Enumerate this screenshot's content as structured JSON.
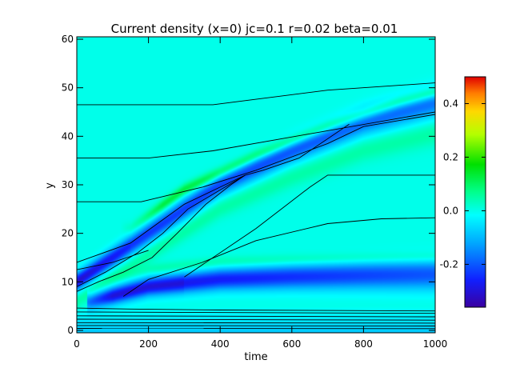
{
  "chart_data": {
    "type": "heatmap",
    "title": "Current density (x=0) jc=0.1 r=0.02 beta=0.01",
    "xlabel": "time",
    "ylabel": "y",
    "xlim": [
      0,
      1000
    ],
    "ylim": [
      -0.5,
      60.5
    ],
    "x_ticks": [
      "0",
      "200",
      "400",
      "600",
      "800",
      "1000"
    ],
    "y_ticks": [
      "0",
      "10",
      "20",
      "30",
      "40",
      "50",
      "60"
    ],
    "colorbar": {
      "range": [
        -0.36,
        0.5
      ],
      "ticks": [
        "-0.2",
        "0.0",
        "0.2",
        "0.4"
      ],
      "colormap": "rainbow"
    },
    "background_value": 0.0,
    "features": [
      {
        "name": "main-ridge",
        "sign": "negative",
        "peak": -0.25,
        "path": [
          [
            0,
            10
          ],
          [
            200,
            20
          ],
          [
            400,
            30
          ],
          [
            600,
            37
          ],
          [
            800,
            43
          ],
          [
            1000,
            47
          ]
        ]
      },
      {
        "name": "flanking-band",
        "sign": "positive",
        "peak": 0.2,
        "path": [
          [
            150,
            21
          ],
          [
            300,
            29
          ],
          [
            500,
            36
          ],
          [
            700,
            42
          ],
          [
            900,
            47
          ],
          [
            1000,
            49
          ]
        ]
      },
      {
        "name": "horizontal-band",
        "sign": "negative",
        "peak": -0.3,
        "path": [
          [
            40,
            6
          ],
          [
            200,
            9
          ],
          [
            400,
            10.5
          ],
          [
            600,
            11
          ],
          [
            800,
            11.3
          ],
          [
            1000,
            11.5
          ]
        ]
      }
    ],
    "contours": [
      {
        "points": [
          [
            0,
            46.5
          ],
          [
            380,
            46.5
          ],
          [
            700,
            49.5
          ],
          [
            1000,
            51
          ]
        ]
      },
      {
        "points": [
          [
            0,
            35.5
          ],
          [
            200,
            35.5
          ],
          [
            380,
            37
          ],
          [
            650,
            40.5
          ],
          [
            1000,
            45
          ]
        ]
      },
      {
        "points": [
          [
            0,
            26.5
          ],
          [
            180,
            26.5
          ],
          [
            350,
            29.5
          ],
          [
            500,
            33
          ],
          [
            700,
            38.5
          ],
          [
            800,
            42
          ],
          [
            1000,
            44.5
          ]
        ]
      },
      {
        "points": [
          [
            0,
            14
          ],
          [
            150,
            18
          ],
          [
            300,
            26
          ],
          [
            470,
            32
          ]
        ]
      },
      {
        "points": [
          [
            0,
            9
          ],
          [
            80,
            12
          ],
          [
            170,
            16
          ],
          [
            240,
            20
          ],
          [
            310,
            25
          ],
          [
            470,
            32
          ]
        ]
      },
      {
        "points": [
          [
            470,
            32
          ],
          [
            520,
            33
          ],
          [
            620,
            35.5
          ],
          [
            760,
            42.5
          ]
        ]
      },
      {
        "points": [
          [
            0,
            8
          ],
          [
            60,
            10
          ],
          [
            130,
            12
          ],
          [
            210,
            15
          ],
          [
            280,
            20
          ],
          [
            360,
            26
          ],
          [
            430,
            30
          ],
          [
            470,
            32
          ]
        ]
      },
      {
        "points": [
          [
            0,
            12.5
          ],
          [
            100,
            14
          ],
          [
            200,
            16.5
          ]
        ]
      },
      {
        "points": [
          [
            300,
            11
          ],
          [
            500,
            21
          ],
          [
            650,
            29.5
          ],
          [
            700,
            32
          ],
          [
            1000,
            32
          ]
        ]
      },
      {
        "points": [
          [
            130,
            7
          ],
          [
            200,
            10.5
          ],
          [
            350,
            14
          ],
          [
            500,
            18.5
          ],
          [
            700,
            22
          ],
          [
            850,
            23
          ],
          [
            1000,
            23.2
          ]
        ]
      },
      {
        "points": [
          [
            0,
            4.6
          ],
          [
            150,
            4.4
          ],
          [
            400,
            4.2
          ],
          [
            700,
            4.1
          ],
          [
            1000,
            4.0
          ]
        ]
      },
      {
        "points": [
          [
            0,
            3.8
          ],
          [
            1000,
            3.5
          ]
        ]
      },
      {
        "points": [
          [
            0,
            3.0
          ],
          [
            1000,
            2.8
          ]
        ]
      },
      {
        "points": [
          [
            0,
            2.3
          ],
          [
            1000,
            2.1
          ]
        ]
      },
      {
        "points": [
          [
            0,
            1.6
          ],
          [
            1000,
            1.5
          ]
        ]
      },
      {
        "points": [
          [
            0,
            1.0
          ],
          [
            1000,
            0.9
          ]
        ]
      },
      {
        "points": [
          [
            0,
            0.4
          ],
          [
            1000,
            0.35
          ]
        ]
      }
    ]
  }
}
